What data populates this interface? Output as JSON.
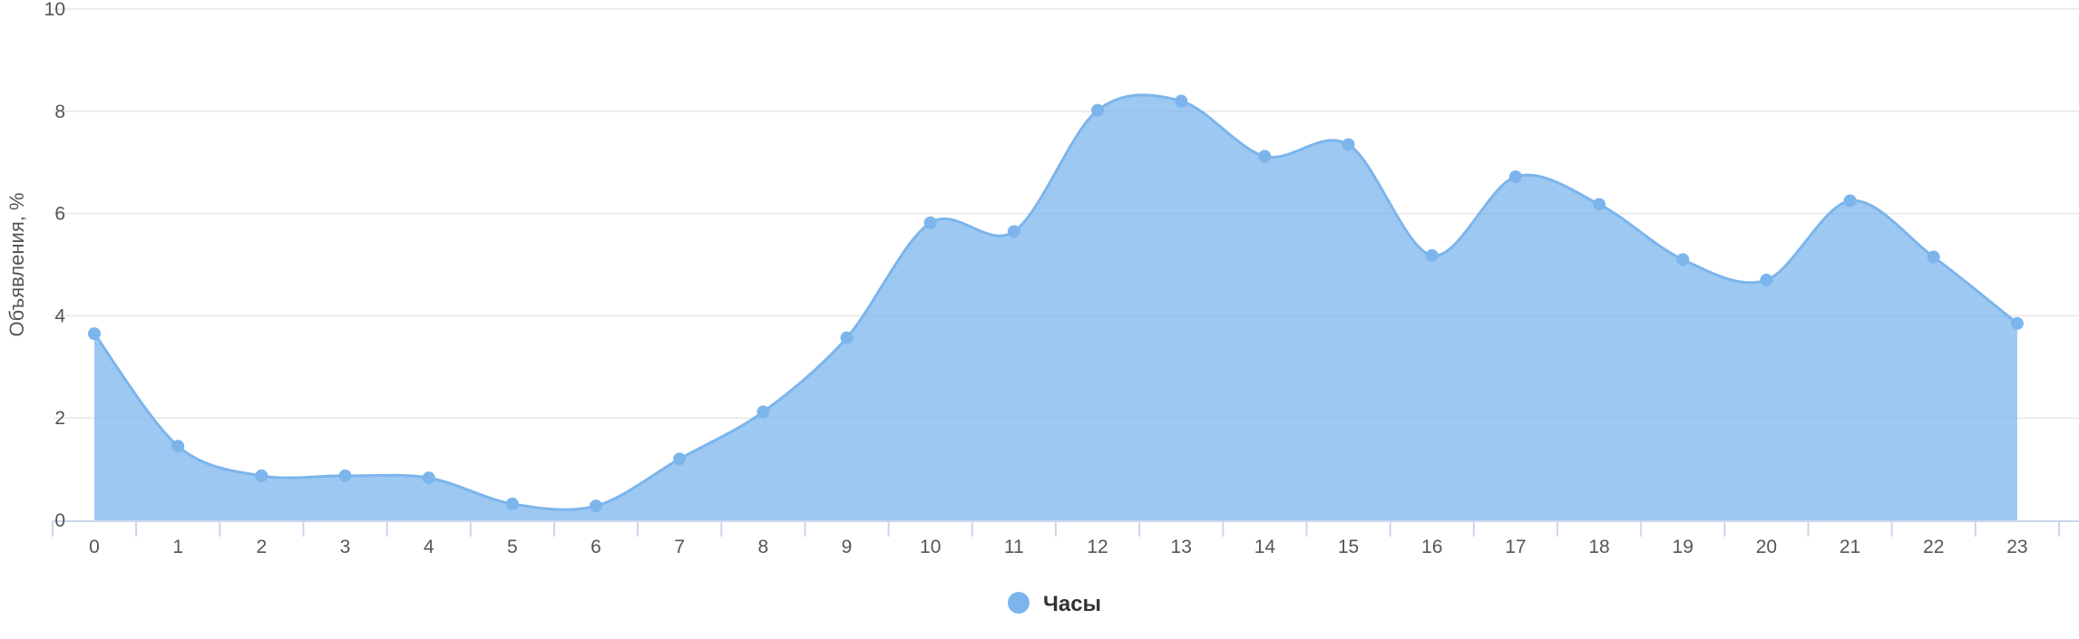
{
  "chart_data": {
    "type": "area",
    "title": "",
    "xlabel": "",
    "ylabel": "Объявления, %",
    "categories": [
      "0",
      "1",
      "2",
      "3",
      "4",
      "5",
      "6",
      "7",
      "8",
      "9",
      "10",
      "11",
      "12",
      "13",
      "14",
      "15",
      "16",
      "17",
      "18",
      "19",
      "20",
      "21",
      "22",
      "23"
    ],
    "series": [
      {
        "name": "Часы",
        "color": "#7cb5ec",
        "values": [
          3.65,
          1.45,
          0.87,
          0.87,
          0.83,
          0.32,
          0.28,
          1.2,
          2.12,
          3.57,
          5.82,
          5.65,
          8.02,
          8.2,
          7.12,
          7.35,
          5.18,
          6.72,
          6.18,
          5.1,
          4.7,
          6.25,
          5.15,
          3.85
        ]
      }
    ],
    "ylim": [
      0,
      10
    ],
    "yticks": [
      0,
      2,
      4,
      6,
      8,
      10
    ],
    "grid": true,
    "legend_position": "bottom-center",
    "area_color": "#7cb5ec",
    "line_color": "#7cb5ec",
    "grid_color": "#e6e6e6"
  }
}
